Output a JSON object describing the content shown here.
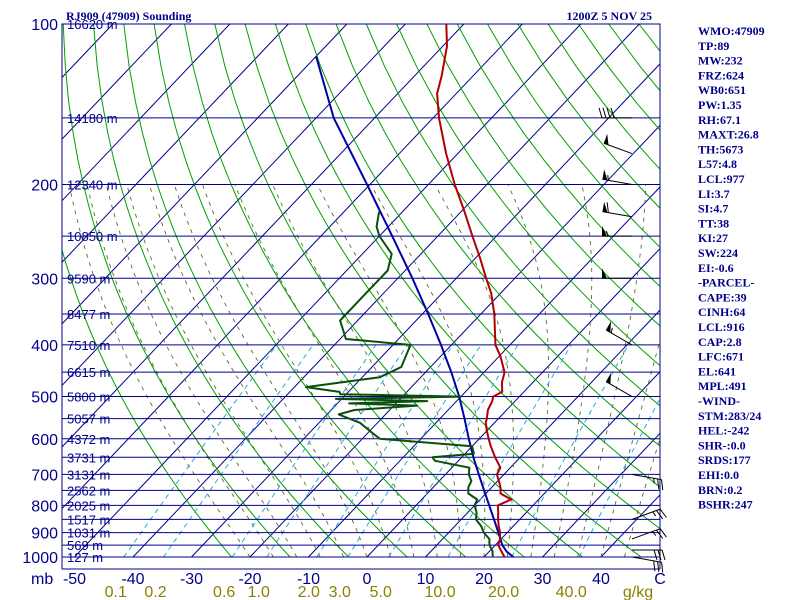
{
  "header": {
    "station": "RJ909 (47909) Sounding",
    "time": "1200Z  5 NOV 25"
  },
  "indices": [
    "WMO:47909",
    "TP:89",
    "MW:232",
    "FRZ:624",
    "WB0:651",
    "PW:1.35",
    "RH:67.1",
    "MAXT:26.8",
    "TH:5673",
    "L57:4.8",
    "LCL:977",
    "LI:3.7",
    "SI:4.7",
    "TT:38",
    "KI:27",
    "SW:224",
    "EI:-0.6",
    "-PARCEL-",
    "CAPE:39",
    "CINH:64",
    "LCL:916",
    "CAP:2.8",
    "LFC:671",
    "EL:641",
    "MPL:491",
    "-WIND-",
    "STM:283/24",
    "HEL:-242",
    "SHR-:0.0",
    "SRDS:177",
    "EHI:0.0",
    "BRN:0.2",
    "BSHR:247"
  ],
  "colors": {
    "frame": "#00008b",
    "isobar": "#00008b",
    "isotherm": "#00008b",
    "dry_adiabat": "#00a000",
    "moist_adiabat": "#5f6b2a",
    "mixing_ratio": "#2aa8d8",
    "temperature": "#b00000",
    "dewpoint": "#0a4f0a",
    "parcel": "#0000aa"
  },
  "chart_data": {
    "type": "skew-t",
    "title": "RJ909 (47909) Sounding",
    "pressure_ticks": [
      {
        "p": 100,
        "label": "100"
      },
      {
        "p": 200,
        "label": "200"
      },
      {
        "p": 300,
        "label": "300"
      },
      {
        "p": 400,
        "label": "400"
      },
      {
        "p": 500,
        "label": "500"
      },
      {
        "p": 600,
        "label": "600"
      },
      {
        "p": 700,
        "label": "700"
      },
      {
        "p": 800,
        "label": "800"
      },
      {
        "p": 900,
        "label": "900"
      },
      {
        "p": 1000,
        "label": "1000"
      }
    ],
    "plimits": [
      100,
      1000
    ],
    "height_labels": [
      {
        "p": 100,
        "label": "16620 m"
      },
      {
        "p": 150,
        "label": "14180 m"
      },
      {
        "p": 200,
        "label": "12340 m"
      },
      {
        "p": 250,
        "label": "10850 m"
      },
      {
        "p": 300,
        "label": "9590 m"
      },
      {
        "p": 350,
        "label": "8477 m"
      },
      {
        "p": 400,
        "label": "7510 m"
      },
      {
        "p": 450,
        "label": "6615 m"
      },
      {
        "p": 500,
        "label": "5800 m"
      },
      {
        "p": 550,
        "label": "5057 m"
      },
      {
        "p": 600,
        "label": "4372 m"
      },
      {
        "p": 650,
        "label": "3731 m"
      },
      {
        "p": 700,
        "label": "3131 m"
      },
      {
        "p": 750,
        "label": "2562 m"
      },
      {
        "p": 800,
        "label": "2025 m"
      },
      {
        "p": 850,
        "label": "1517 m"
      },
      {
        "p": 900,
        "label": "1031 m"
      },
      {
        "p": 950,
        "label": "569 m"
      },
      {
        "p": 1000,
        "label": "127 m"
      }
    ],
    "pressure_unit": "mb",
    "temp_ticks": [
      {
        "t": -50,
        "label": "-50"
      },
      {
        "t": -40,
        "label": "-40"
      },
      {
        "t": -30,
        "label": "-30"
      },
      {
        "t": -20,
        "label": "-20"
      },
      {
        "t": -10,
        "label": "-10"
      },
      {
        "t": 0,
        "label": "0"
      },
      {
        "t": 10,
        "label": "10"
      },
      {
        "t": 20,
        "label": "20"
      },
      {
        "t": 30,
        "label": "30"
      },
      {
        "t": 40,
        "label": "40"
      }
    ],
    "temp_unit": "C",
    "mixing_ratio_ticks": [
      {
        "w": 0.1,
        "label": "0.1"
      },
      {
        "w": 0.2,
        "label": "0.2"
      },
      {
        "w": 0.6,
        "label": "0.6"
      },
      {
        "w": 1.0,
        "label": "1.0"
      },
      {
        "w": 2.0,
        "label": "2.0"
      },
      {
        "w": 3.0,
        "label": "3.0"
      },
      {
        "w": 5.0,
        "label": "5.0"
      },
      {
        "w": 10.0,
        "label": "10.0"
      },
      {
        "w": 20.0,
        "label": "20.0"
      },
      {
        "w": 40.0,
        "label": "40.0"
      }
    ],
    "mixing_ratio_unit": "g/kg",
    "temperature": [
      {
        "p": 1000,
        "t": 23.5
      },
      {
        "p": 975,
        "t": 22.0
      },
      {
        "p": 950,
        "t": 20.5
      },
      {
        "p": 925,
        "t": 19.8
      },
      {
        "p": 900,
        "t": 18.8
      },
      {
        "p": 875,
        "t": 17.5
      },
      {
        "p": 850,
        "t": 16.3
      },
      {
        "p": 825,
        "t": 15.2
      },
      {
        "p": 800,
        "t": 14.0
      },
      {
        "p": 780,
        "t": 15.3
      },
      {
        "p": 760,
        "t": 12.5
      },
      {
        "p": 740,
        "t": 11.5
      },
      {
        "p": 720,
        "t": 10.2
      },
      {
        "p": 700,
        "t": 8.8
      },
      {
        "p": 680,
        "t": 8.3
      },
      {
        "p": 650,
        "t": 5.7
      },
      {
        "p": 620,
        "t": 3.2
      },
      {
        "p": 600,
        "t": 1.6
      },
      {
        "p": 580,
        "t": 0.0
      },
      {
        "p": 560,
        "t": -1.5
      },
      {
        "p": 550,
        "t": -2.0
      },
      {
        "p": 530,
        "t": -3.2
      },
      {
        "p": 510,
        "t": -3.9
      },
      {
        "p": 500,
        "t": -4.5
      },
      {
        "p": 490,
        "t": -3.7
      },
      {
        "p": 470,
        "t": -5.3
      },
      {
        "p": 450,
        "t": -6.5
      },
      {
        "p": 420,
        "t": -9.8
      },
      {
        "p": 400,
        "t": -12.5
      },
      {
        "p": 380,
        "t": -14.5
      },
      {
        "p": 350,
        "t": -17.7
      },
      {
        "p": 320,
        "t": -21.6
      },
      {
        "p": 300,
        "t": -24.9
      },
      {
        "p": 275,
        "t": -29.2
      },
      {
        "p": 250,
        "t": -34.1
      },
      {
        "p": 225,
        "t": -39.4
      },
      {
        "p": 200,
        "t": -45.5
      },
      {
        "p": 175,
        "t": -52.0
      },
      {
        "p": 150,
        "t": -59.0
      },
      {
        "p": 135,
        "t": -63.3
      },
      {
        "p": 125,
        "t": -65.4
      },
      {
        "p": 110,
        "t": -69.3
      },
      {
        "p": 100,
        "t": -73.0
      }
    ],
    "dewpoint": [
      {
        "p": 1000,
        "t": 21.5
      },
      {
        "p": 975,
        "t": 20.5
      },
      {
        "p": 950,
        "t": 19.0
      },
      {
        "p": 925,
        "t": 18.0
      },
      {
        "p": 900,
        "t": 16.0
      },
      {
        "p": 875,
        "t": 14.5
      },
      {
        "p": 850,
        "t": 12.5
      },
      {
        "p": 825,
        "t": 11.5
      },
      {
        "p": 800,
        "t": 10.0
      },
      {
        "p": 780,
        "t": 9.5
      },
      {
        "p": 760,
        "t": 7.0
      },
      {
        "p": 740,
        "t": 6.0
      },
      {
        "p": 720,
        "t": 5.5
      },
      {
        "p": 700,
        "t": 4.0
      },
      {
        "p": 680,
        "t": 3.0
      },
      {
        "p": 660,
        "t": -4.0
      },
      {
        "p": 650,
        "t": -5.0
      },
      {
        "p": 640,
        "t": 1.5
      },
      {
        "p": 620,
        "t": 0.0
      },
      {
        "p": 600,
        "t": -17.0
      },
      {
        "p": 580,
        "t": -20.0
      },
      {
        "p": 560,
        "t": -23.0
      },
      {
        "p": 540,
        "t": -28.0
      },
      {
        "p": 530,
        "t": -26.0
      },
      {
        "p": 520,
        "t": -16.0
      },
      {
        "p": 515,
        "t": -28.0
      },
      {
        "p": 510,
        "t": -15.0
      },
      {
        "p": 505,
        "t": -31.0
      },
      {
        "p": 500,
        "t": -10.0
      },
      {
        "p": 495,
        "t": -31.0
      },
      {
        "p": 490,
        "t": -31.5
      },
      {
        "p": 480,
        "t": -38.0
      },
      {
        "p": 460,
        "t": -27.0
      },
      {
        "p": 440,
        "t": -25.0
      },
      {
        "p": 400,
        "t": -27.0
      },
      {
        "p": 390,
        "t": -39.0
      },
      {
        "p": 360,
        "t": -43.0
      },
      {
        "p": 320,
        "t": -43.0
      },
      {
        "p": 290,
        "t": -43.0
      },
      {
        "p": 270,
        "t": -45.0
      },
      {
        "p": 250,
        "t": -50.0
      },
      {
        "p": 240,
        "t": -52.0
      },
      {
        "p": 225,
        "t": -54.0
      }
    ],
    "parcel": [
      {
        "p": 1000,
        "t": 25.0
      },
      {
        "p": 977,
        "t": 23.0
      },
      {
        "p": 950,
        "t": 21.2
      },
      {
        "p": 900,
        "t": 18.5
      },
      {
        "p": 850,
        "t": 15.6
      },
      {
        "p": 800,
        "t": 12.5
      },
      {
        "p": 750,
        "t": 9.2
      },
      {
        "p": 700,
        "t": 5.7
      },
      {
        "p": 650,
        "t": 2.0
      },
      {
        "p": 600,
        "t": -1.8
      },
      {
        "p": 550,
        "t": -5.8
      },
      {
        "p": 500,
        "t": -10.3
      },
      {
        "p": 450,
        "t": -15.6
      },
      {
        "p": 400,
        "t": -21.8
      },
      {
        "p": 350,
        "t": -29.0
      },
      {
        "p": 300,
        "t": -37.5
      },
      {
        "p": 250,
        "t": -47.8
      },
      {
        "p": 200,
        "t": -60.5
      },
      {
        "p": 150,
        "t": -77.0
      },
      {
        "p": 115,
        "t": -90.0
      }
    ],
    "wind_barbs": [
      {
        "p": 1000,
        "dir": 100,
        "spd": 30
      },
      {
        "p": 970,
        "dir": 90,
        "spd": 30
      },
      {
        "p": 925,
        "dir": 70,
        "spd": 25
      },
      {
        "p": 850,
        "dir": 70,
        "spd": 25
      },
      {
        "p": 700,
        "dir": 100,
        "spd": 25
      },
      {
        "p": 500,
        "dir": 300,
        "spd": 50
      },
      {
        "p": 400,
        "dir": 300,
        "spd": 55
      },
      {
        "p": 300,
        "dir": 270,
        "spd": 50
      },
      {
        "p": 250,
        "dir": 270,
        "spd": 55
      },
      {
        "p": 230,
        "dir": 280,
        "spd": 60
      },
      {
        "p": 200,
        "dir": 280,
        "spd": 55
      },
      {
        "p": 175,
        "dir": 290,
        "spd": 50
      },
      {
        "p": 150,
        "dir": 270,
        "spd": 40
      }
    ]
  }
}
